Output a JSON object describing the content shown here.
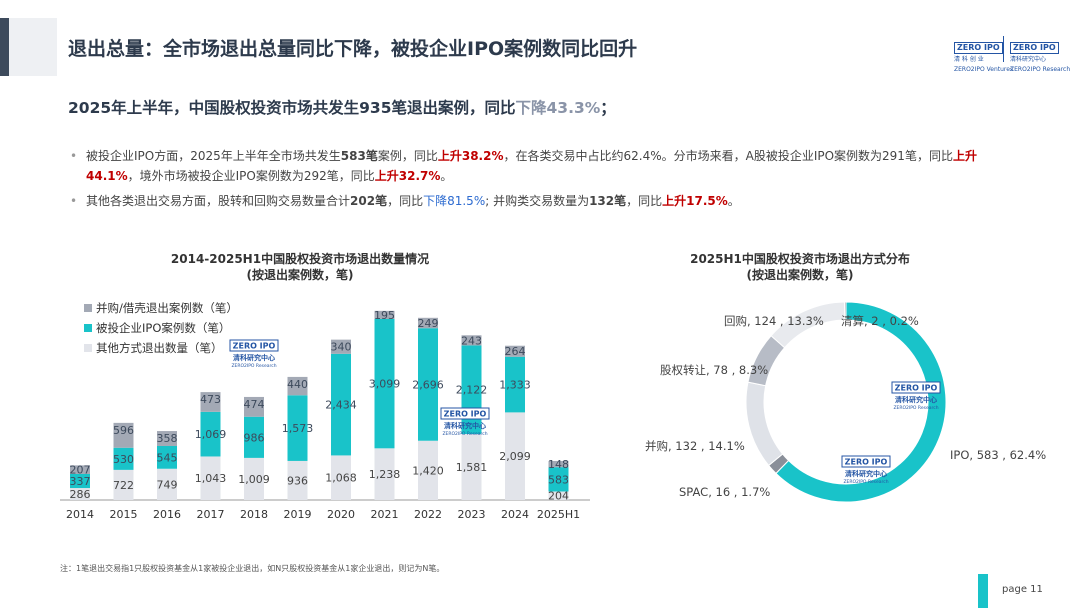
{
  "header": {
    "title": "退出总量：全市场退出总量同比下降，被投企业IPO案例数同比回升",
    "logo1_box": "ZERO IPO",
    "logo1_cn": "清 科 创 业",
    "logo1_en": "ZERO2IPO Ventures",
    "logo2_box": "ZERO IPO",
    "logo2_cn": "清科研究中心",
    "logo2_en": "ZERO2IPO Research"
  },
  "headline": {
    "prefix": "2025年上半年，中国股权投资市场共发生935笔退出案例，同比",
    "highlight": "下降43.3%",
    "suffix": "；"
  },
  "bullets": {
    "b1": {
      "t1": "被投企业IPO方面，2025年上半年全市场共发生",
      "n1": "583笔",
      "t2": "案例，同比",
      "u1": "上升38.2%",
      "t3": "，在各类交易中占比约62.4%。分市场来看，A股被投企业IPO案例数为291笔，同比",
      "u2": "上升44.1%",
      "t4": "，境外市场被投企业IPO案例数为292笔，同比",
      "u3": "上升32.7%",
      "t5": "。"
    },
    "b2": {
      "t1": "其他各类退出交易方面，股转和回购交易数量合计",
      "n1": "202笔",
      "t2": "，同比",
      "d1": "下降81.5%",
      "t3": "; 并购类交易数量为",
      "n2": "132笔",
      "t4": "，同比",
      "u1": "上升17.5%",
      "t5": "。"
    }
  },
  "watermark": {
    "box": "ZERO IPO",
    "cn": "清科研究中心",
    "en": "ZERO2IPO Research"
  },
  "colors": {
    "ma": "#a3a9b5",
    "ipo": "#19c3c9",
    "other": "#e2e4ea"
  },
  "bar_chart": {
    "title_line1": "2014-2025H1中国股权投资市场退出数量情况",
    "title_line2": "(按退出案例数，笔)",
    "chart_data": {
      "type": "bar",
      "stacked": true,
      "categories": [
        "2014",
        "2015",
        "2016",
        "2017",
        "2018",
        "2019",
        "2020",
        "2021",
        "2022",
        "2023",
        "2024",
        "2025H1"
      ],
      "series": [
        {
          "name": "其他方式退出数量（笔）",
          "key": "other",
          "values": [
            286,
            722,
            749,
            1043,
            1009,
            936,
            1068,
            1238,
            1420,
            1581,
            2099,
            204
          ]
        },
        {
          "name": "被投企业IPO案例数（笔）",
          "key": "ipo",
          "values": [
            337,
            530,
            545,
            1069,
            986,
            1573,
            2434,
            3099,
            2696,
            2122,
            1333,
            583
          ]
        },
        {
          "name": "并购/借壳退出案例数（笔）",
          "key": "ma",
          "values": [
            207,
            596,
            358,
            473,
            474,
            440,
            340,
            195,
            249,
            243,
            264,
            148
          ]
        }
      ],
      "legend": [
        "并购/借壳退出案例数（笔）",
        "被投企业IPO案例数（笔）",
        "其他方式退出数量（笔）"
      ],
      "ylim": [
        0,
        4600
      ]
    }
  },
  "donut_chart": {
    "title_line1": "2025H1中国股权投资市场退出方式分布",
    "title_line2": "(按退出案例数，笔)",
    "chart_data": {
      "type": "pie",
      "donut": true,
      "slices": [
        {
          "name": "IPO",
          "value": 583,
          "pct": "62.4%",
          "label": "IPO, 583 , 62.4%",
          "color": "#19c3c9"
        },
        {
          "name": "SPAC",
          "value": 16,
          "pct": "1.7%",
          "label": "SPAC, 16 , 1.7%",
          "color": "#8a8f99"
        },
        {
          "name": "并购",
          "value": 132,
          "pct": "14.1%",
          "label": "并购, 132 , 14.1%",
          "color": "#dfe2e8"
        },
        {
          "name": "股权转让",
          "value": 78,
          "pct": "8.3%",
          "label": "股权转让, 78 , 8.3%",
          "color": "#b7bcc6"
        },
        {
          "name": "回购",
          "value": 124,
          "pct": "13.3%",
          "label": "回购, 124 , 13.3%",
          "color": "#e8eaee"
        },
        {
          "name": "清算",
          "value": 2,
          "pct": "0.2%",
          "label": "清算, 2 , 0.2%",
          "color": "#5c6370"
        }
      ]
    }
  },
  "footer": {
    "note": "注：1笔退出交易指1只股权投资基金从1家被投企业退出，如N只股权投资基金从1家企业退出，则记为N笔。",
    "page": "page  11"
  }
}
